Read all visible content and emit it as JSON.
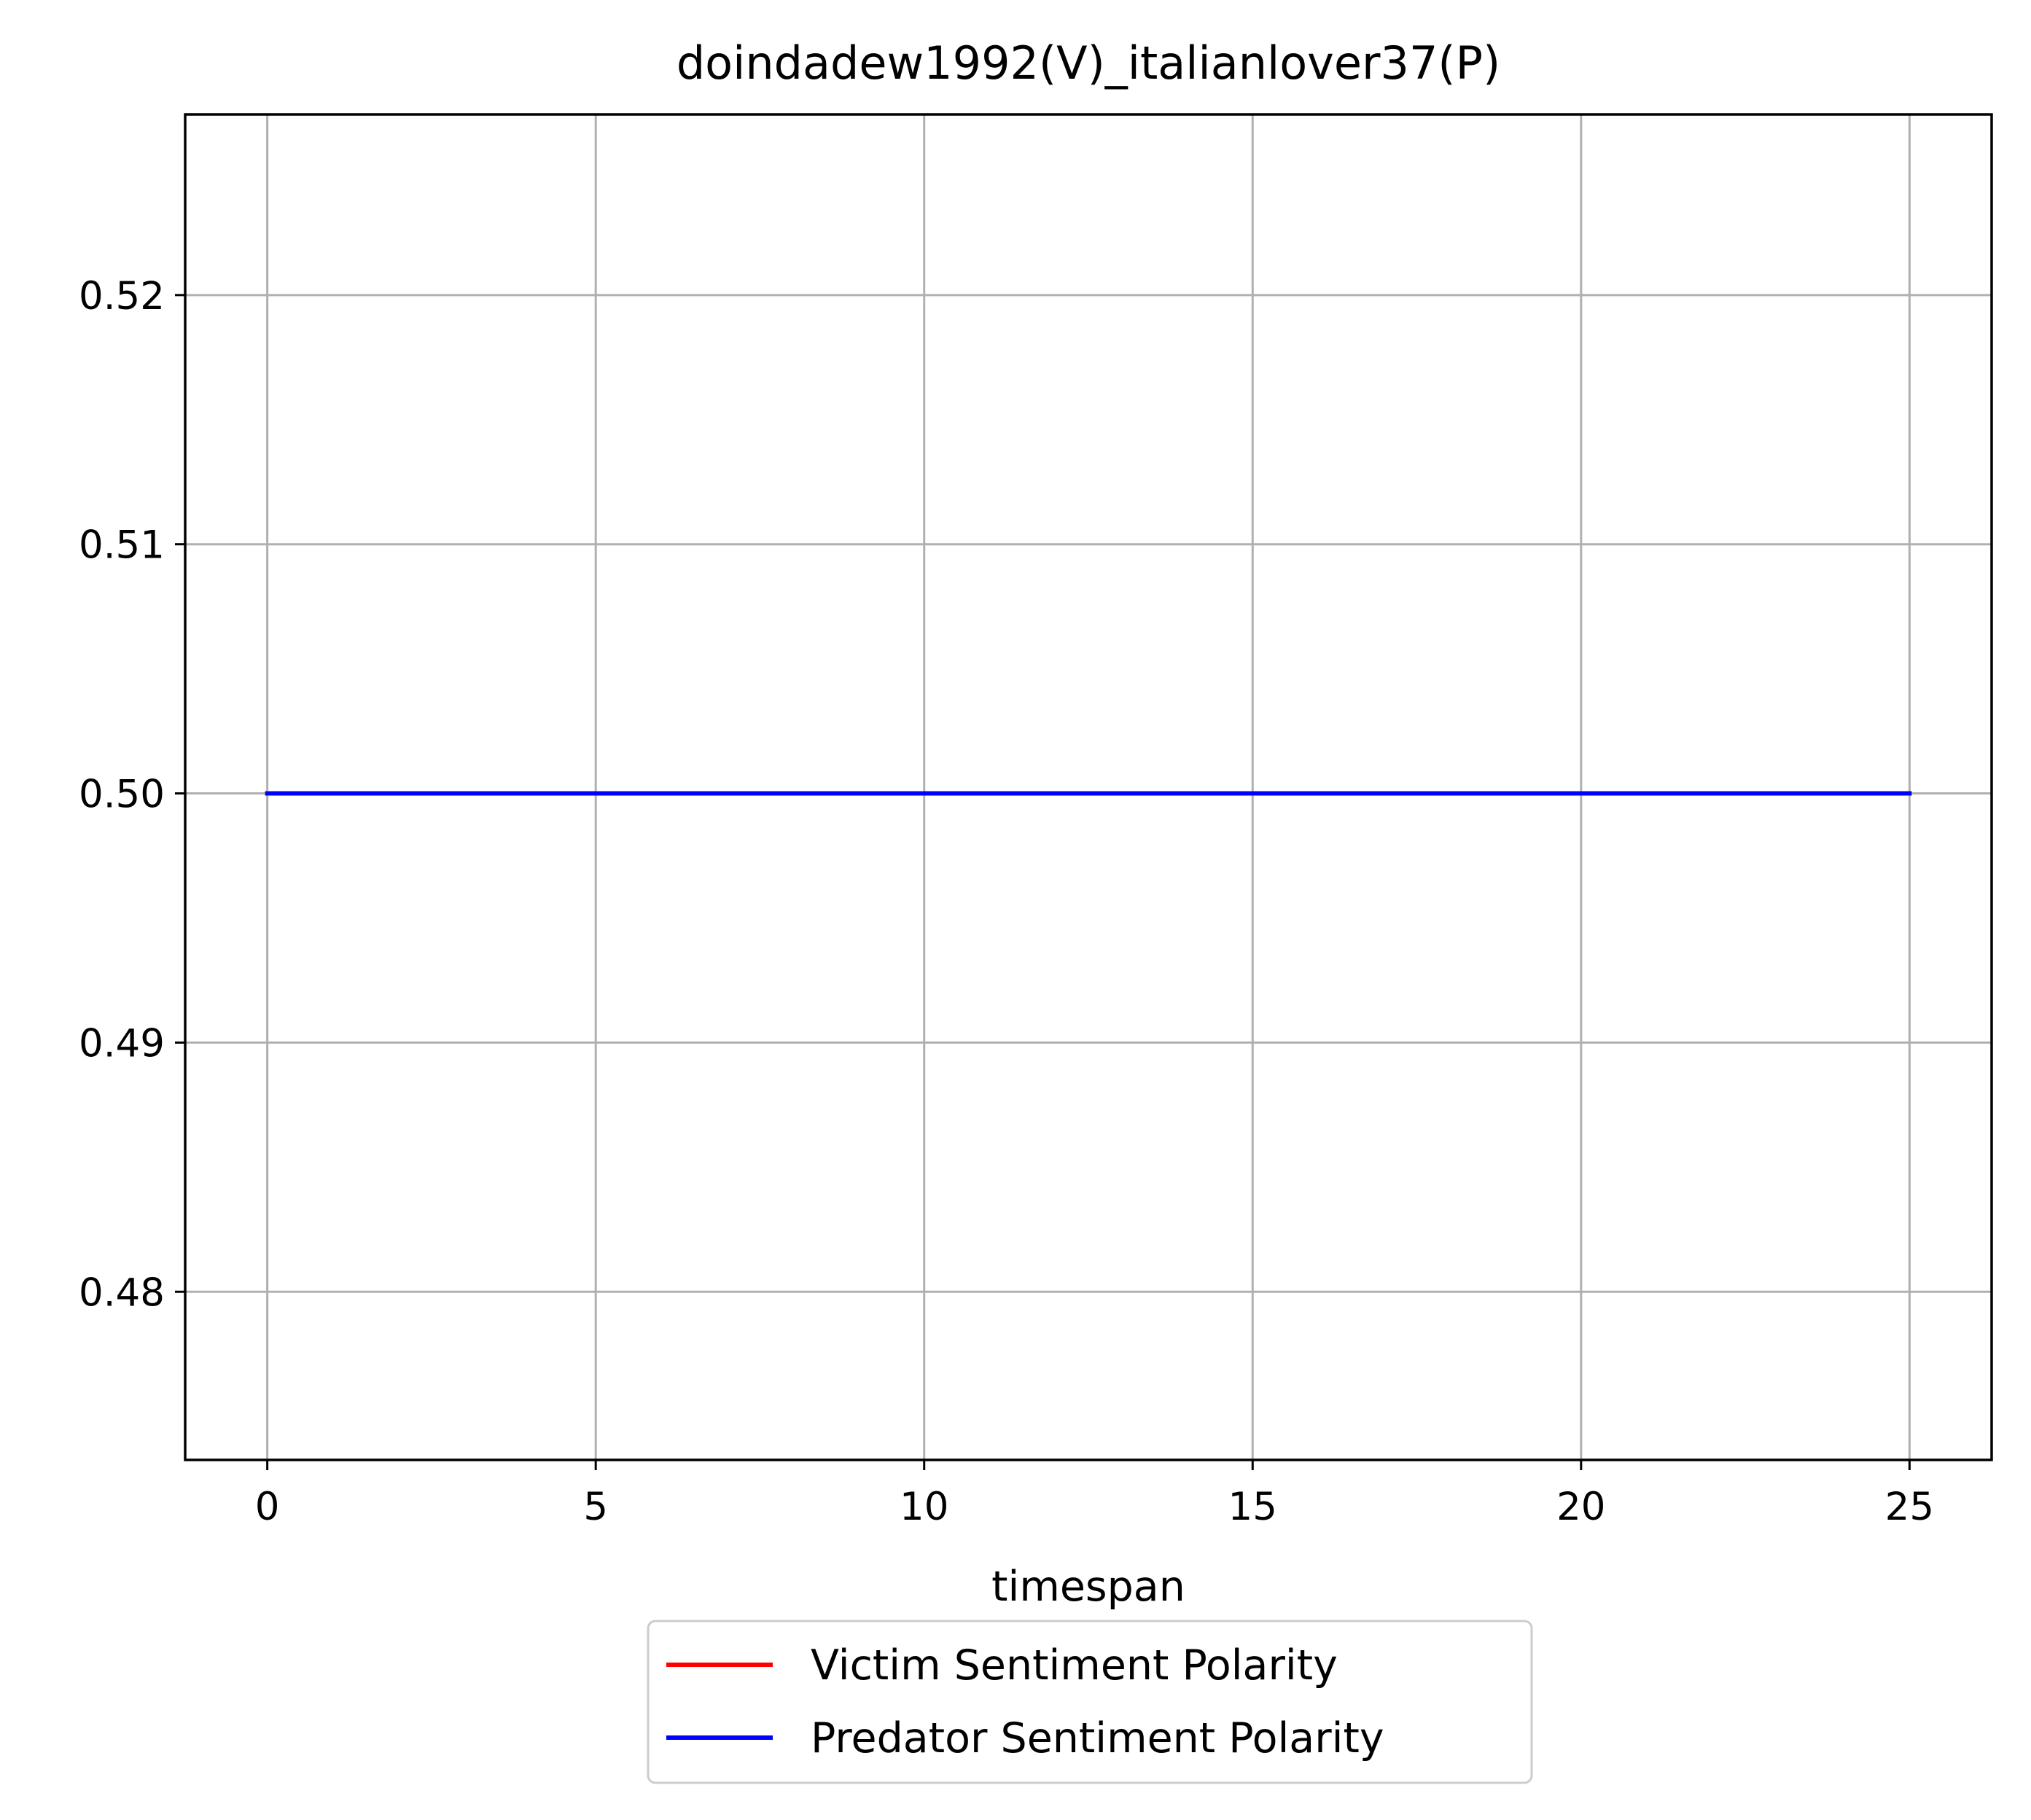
{
  "chart_data": {
    "type": "line",
    "title": "doindadew1992(V)_italianlover37(P)",
    "xlabel": "timespan",
    "ylabel": "",
    "xlim": [
      -1.25,
      26.25
    ],
    "ylim": [
      0.47325,
      0.52725
    ],
    "xticks": [
      0,
      5,
      10,
      15,
      20,
      25
    ],
    "xtick_labels": [
      "0",
      "5",
      "10",
      "15",
      "20",
      "25"
    ],
    "yticks": [
      0.48,
      0.49,
      0.5,
      0.51,
      0.52
    ],
    "ytick_labels": [
      "0.48",
      "0.49",
      "0.50",
      "0.51",
      "0.52"
    ],
    "grid": true,
    "legend_position": "below-center",
    "series": [
      {
        "name": "Victim Sentiment Polarity",
        "color": "#ff0000",
        "x": [],
        "y": []
      },
      {
        "name": "Predator Sentiment Polarity",
        "color": "#0000ff",
        "x": [
          0,
          25
        ],
        "y": [
          0.5,
          0.5
        ]
      }
    ]
  }
}
